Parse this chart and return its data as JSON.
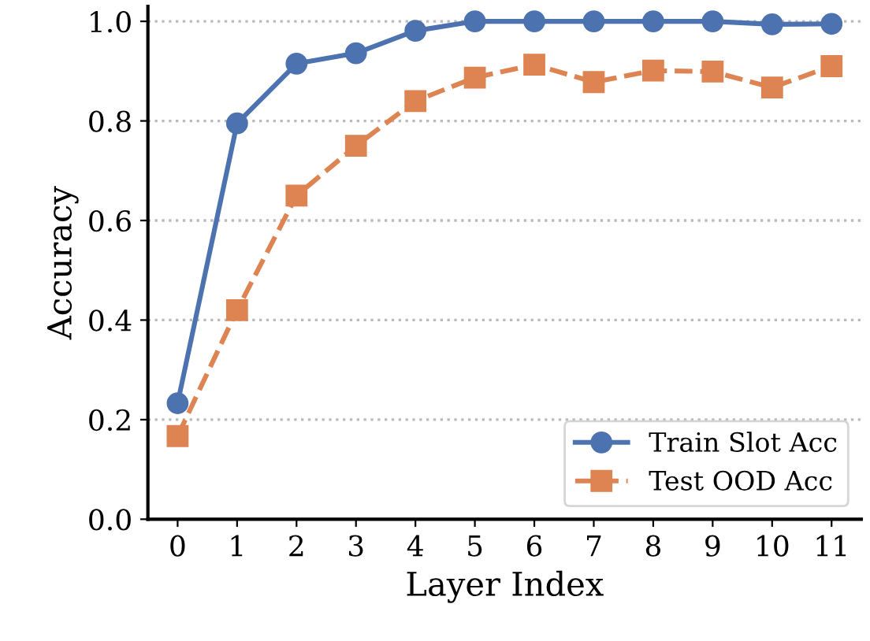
{
  "chart_data": {
    "type": "line",
    "xlabel": "Layer Index",
    "ylabel": "Accuracy",
    "x": [
      0,
      1,
      2,
      3,
      4,
      5,
      6,
      7,
      8,
      9,
      10,
      11
    ],
    "xlim": [
      -0.5,
      11.5
    ],
    "xticks": [
      0,
      1,
      2,
      3,
      4,
      5,
      6,
      7,
      8,
      9,
      10,
      11
    ],
    "ylim": [
      0,
      1.03
    ],
    "yticks": [
      {
        "value": 0,
        "label": "0.0"
      },
      0.2,
      0.4,
      0.6,
      0.8,
      {
        "value": 1,
        "label": "1.0"
      }
    ],
    "grid": "y",
    "legend": "bottom right",
    "series": [
      {
        "name": "Train Slot Acc",
        "color": "#4c72b0",
        "marker": "circle",
        "line_style": "solid",
        "values": [
          0.233,
          0.795,
          0.915,
          0.936,
          0.981,
          1.0,
          1.0,
          1.0,
          1.0,
          1.0,
          0.994,
          0.995
        ]
      },
      {
        "name": "Test OOD Acc",
        "color": "#dd8452",
        "marker": "square",
        "line_style": "dashed",
        "values": [
          0.167,
          0.42,
          0.65,
          0.75,
          0.84,
          0.887,
          0.913,
          0.878,
          0.901,
          0.899,
          0.867,
          0.91
        ]
      }
    ]
  }
}
